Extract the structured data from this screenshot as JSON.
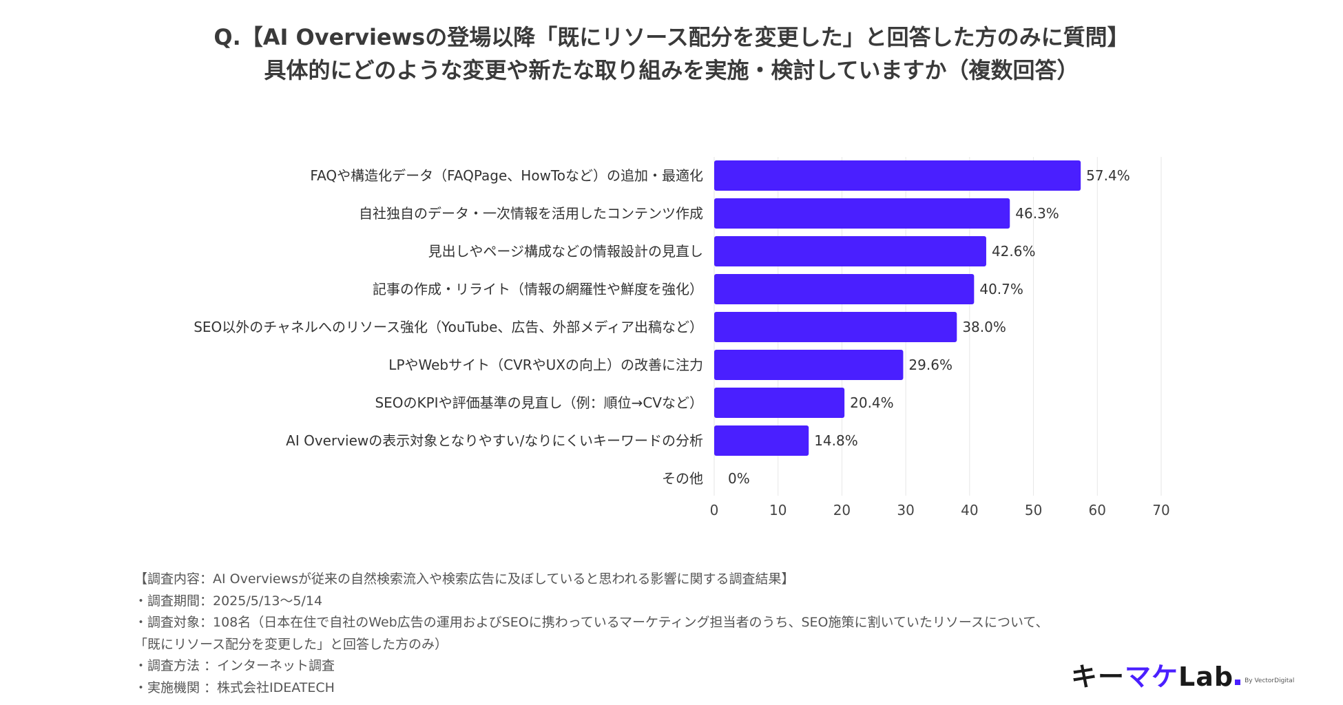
{
  "title": {
    "line1": "Q.【AI Overviewsの登場以降「既にリソース配分を変更した」と回答した方のみに質問】",
    "line2": "具体的にどのような変更や新たな取り組みを実施・検討していますか（複数回答）"
  },
  "chart_data": {
    "type": "bar",
    "orientation": "horizontal",
    "categories": [
      "FAQや構造化データ（FAQPage、HowToなど）の追加・最適化",
      "自社独自のデータ・一次情報を活用したコンテンツ作成",
      "見出しやページ構成などの情報設計の見直し",
      "記事の作成・リライト（情報の網羅性や鮮度を強化）",
      "SEO以外のチャネルへのリソース強化（YouTube、広告、外部メディア出稿など）",
      "LPやWebサイト（CVRやUXの向上）の改善に注力",
      "SEOのKPIや評価基準の見直し（例：順位→CVなど）",
      "AI Overviewの表示対象となりやすい/なりにくいキーワードの分析",
      "その他"
    ],
    "values": [
      57.4,
      46.3,
      42.6,
      40.7,
      38.0,
      29.6,
      20.4,
      14.8,
      0
    ],
    "value_labels": [
      "57.4%",
      "46.3%",
      "42.6%",
      "40.7%",
      "38.0%",
      "29.6%",
      "20.4%",
      "14.8%",
      "0%"
    ],
    "xlim": [
      0,
      70
    ],
    "xticks": [
      "0",
      "10",
      "20",
      "30",
      "40",
      "50",
      "60",
      "70"
    ],
    "bar_color": "#4a1fff",
    "grid": true
  },
  "notes": [
    "【調査内容：AI Overviewsが従来の自然検索流入や検索広告に及ぼしていると思われる影響に関する調査結果】",
    "・調査期間：2025/5/13〜5/14",
    "・調査対象：108名（日本在住で自社のWeb広告の運用およびSEOに携わっているマーケティング担当者のうち、SEO施策に割いていたリソースについて、",
    "「既にリソース配分を変更した」と回答した方のみ）",
    "・調査方法 ：インターネット調査",
    "・実施機関 ：株式会社IDEATECH"
  ],
  "logo": {
    "part1": "キー",
    "part2": "マケ",
    "part3": "Lab",
    "sub": "By VectorDigital"
  }
}
